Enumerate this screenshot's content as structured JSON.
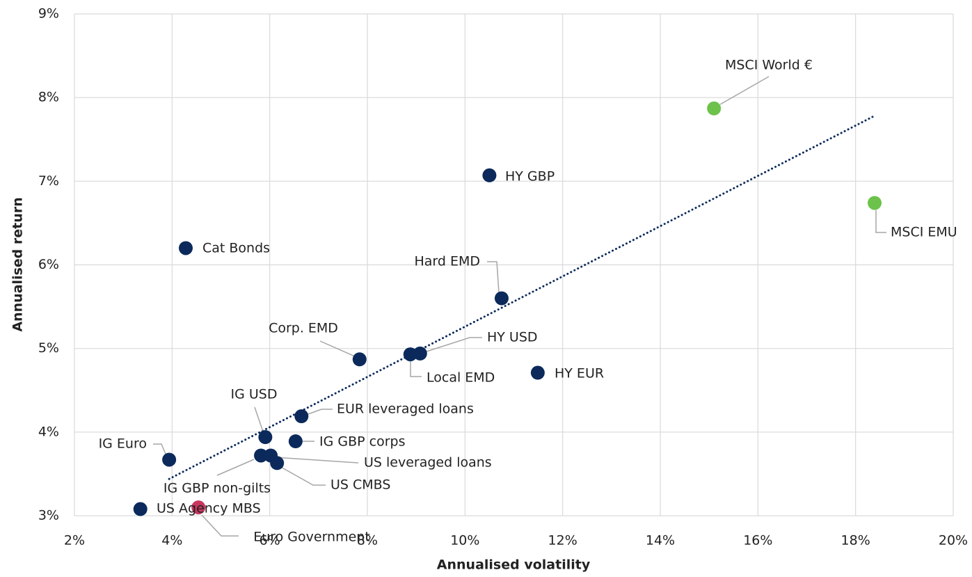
{
  "chart_data": {
    "type": "scatter",
    "x_label": "Annualised volatility",
    "y_label": "Annualised return",
    "labels": [
      "US Agency MBS",
      "Euro Government",
      "IG Euro",
      "Cat Bonds",
      "IG GBP non-gilts",
      "US leveraged loans",
      "US CMBS",
      "IG USD",
      "IG GBP corps",
      "EUR leveraged loans",
      "Corp. EMD",
      "Local EMD",
      "HY USD",
      "Hard EMD",
      "HY GBP",
      "HY EUR",
      "MSCI World €",
      "MSCI EMU"
    ],
    "x": [
      3.35,
      4.54,
      3.94,
      4.28,
      5.82,
      6.02,
      6.15,
      5.91,
      6.53,
      6.65,
      7.84,
      8.88,
      9.08,
      10.75,
      10.5,
      11.49,
      15.1,
      18.39
    ],
    "values": [
      3.08,
      3.1,
      3.67,
      6.2,
      3.72,
      3.72,
      3.63,
      3.94,
      3.89,
      4.19,
      4.87,
      4.93,
      4.94,
      5.6,
      7.07,
      4.71,
      7.87,
      6.74
    ],
    "colors": [
      "#0b2a5b",
      "#c8365f",
      "#0b2a5b",
      "#0b2a5b",
      "#0b2a5b",
      "#0b2a5b",
      "#0b2a5b",
      "#0b2a5b",
      "#0b2a5b",
      "#0b2a5b",
      "#0b2a5b",
      "#0b2a5b",
      "#0b2a5b",
      "#0b2a5b",
      "#0b2a5b",
      "#0b2a5b",
      "#6cc24a",
      "#6cc24a"
    ],
    "trendline": {
      "x": [
        3.94,
        18.35
      ],
      "values": [
        3.44,
        7.77
      ],
      "color": "#0b2a5b"
    },
    "xlim": [
      2,
      20
    ],
    "xticks": [
      {
        "value": 2,
        "label": "2%"
      },
      {
        "value": 4,
        "label": "4%"
      },
      {
        "value": 6,
        "label": "6%"
      },
      {
        "value": 8,
        "label": "8%"
      },
      {
        "value": 10,
        "label": "10%"
      },
      {
        "value": 12,
        "label": "12%"
      },
      {
        "value": 14,
        "label": "14%"
      },
      {
        "value": 16,
        "label": "16%"
      },
      {
        "value": 18,
        "label": "18%"
      },
      {
        "value": 20,
        "label": "20%"
      }
    ],
    "ylim": [
      3,
      9
    ],
    "yticks": [
      {
        "value": 3,
        "label": "3%"
      },
      {
        "value": 4,
        "label": "4%"
      },
      {
        "value": 5,
        "label": "5%"
      },
      {
        "value": 6,
        "label": "6%"
      },
      {
        "value": 7,
        "label": "7%"
      },
      {
        "value": 8,
        "label": "8%"
      },
      {
        "value": 9,
        "label": "9%"
      }
    ],
    "grid": true
  }
}
